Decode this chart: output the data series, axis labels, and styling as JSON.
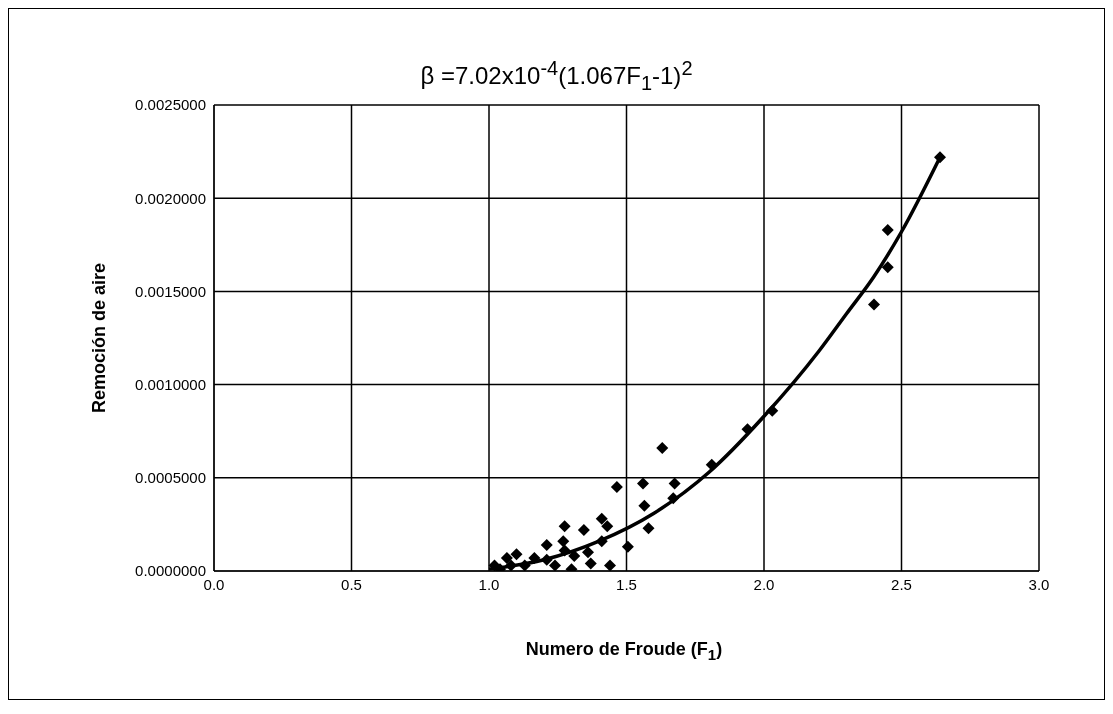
{
  "chart_data": {
    "type": "scatter",
    "title": "β =7.02x10$^{-4}$(1.067F$_{1}$-1)$^{2}$",
    "xlabel": "Numero de Froude (F$_{1}$)",
    "ylabel": "Remoción de aire",
    "xlim": [
      0,
      3
    ],
    "xticks": [
      {
        "value": 0,
        "label": "0.0"
      },
      {
        "value": 0.5,
        "label": "0.5"
      },
      {
        "value": 1,
        "label": "1.0"
      },
      {
        "value": 1.5,
        "label": "1.5"
      },
      {
        "value": 2,
        "label": "2.0"
      },
      {
        "value": 2.5,
        "label": "2.5"
      },
      {
        "value": 3,
        "label": "3.0"
      }
    ],
    "ylim": [
      0,
      0.0025
    ],
    "yticks": [
      {
        "value": 0,
        "label": "0.0000000"
      },
      {
        "value": 0.0005,
        "label": "0.0005000"
      },
      {
        "value": 0.001,
        "label": "0.0010000"
      },
      {
        "value": 0.0015,
        "label": "0.0015000"
      },
      {
        "value": 0.002,
        "label": "0.0020000"
      },
      {
        "value": 0.0025,
        "label": "0.0025000"
      }
    ],
    "grid": true,
    "series": [
      {
        "color": "#000000",
        "marker": "diamond",
        "x": [
          2.64,
          2.45,
          2.45,
          2.4,
          2.03,
          1.94,
          1.81,
          1.63,
          1.675,
          1.56,
          1.465,
          1.67,
          1.565,
          1.58,
          1.505,
          1.41,
          1.43,
          1.345,
          1.275,
          1.41,
          1.44,
          1.3,
          1.27,
          1.21,
          1.275,
          1.36,
          1.31,
          1.37,
          1.1,
          1.065,
          1.02,
          1.165,
          1.21,
          1.24,
          1.04,
          1.13,
          1.08
        ],
        "values": [
          0.00222,
          0.00183,
          0.00163,
          0.00143,
          0.00086,
          0.00076,
          0.00057,
          0.00066,
          0.00047,
          0.00047,
          0.00045,
          0.00039,
          0.00035,
          0.00023,
          0.00013,
          0.00028,
          0.00024,
          0.00022,
          0.00024,
          0.00016,
          3e-05,
          1e-05,
          0.00016,
          0.00014,
          0.00011,
          0.0001,
          8e-05,
          4e-05,
          9e-05,
          7e-05,
          3e-05,
          7e-05,
          6e-05,
          3e-05,
          1e-05,
          3e-05,
          3e-05
        ]
      },
      {
        "type": "line",
        "color": "#000000",
        "line_style": "solid",
        "marker": "none",
        "x": [
          1.0,
          1.2,
          1.4,
          1.6,
          1.8,
          2.0,
          2.2,
          2.3,
          2.4,
          2.5,
          2.64
        ],
        "values": [
          1e-05,
          6e-05,
          0.00016,
          0.00031,
          0.00053,
          0.00083,
          0.00118,
          0.00138,
          0.00158,
          0.00182,
          0.00222
        ]
      }
    ]
  }
}
